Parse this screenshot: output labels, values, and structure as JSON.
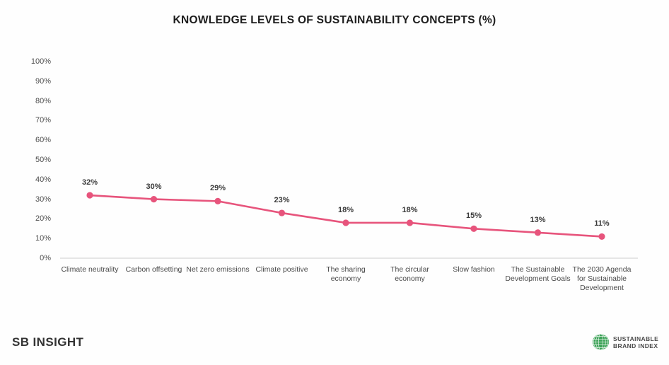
{
  "title": "KNOWLEDGE LEVELS OF SUSTAINABILITY CONCEPTS (%)",
  "colors": {
    "line": "#e7547c",
    "marker": "#e7547c",
    "baseline": "#dedede",
    "label": "#3a3a3a",
    "logo_green": "#3ca257"
  },
  "footer": {
    "brand": "SB INSIGHT",
    "logo_line1": "SUSTAINABLE",
    "logo_line2": "BRAND INDEX"
  },
  "chart_data": {
    "type": "line",
    "title": "KNOWLEDGE LEVELS OF SUSTAINABILITY CONCEPTS (%)",
    "categories": [
      "Climate neutrality",
      "Carbon offsetting",
      "Net zero emissions",
      "Climate positive",
      "The sharing economy",
      "The circular economy",
      "Slow fashion",
      "The Sustainable Development Goals",
      "The 2030 Agenda for Sustainable Development"
    ],
    "values": [
      32,
      30,
      29,
      23,
      18,
      18,
      15,
      13,
      11
    ],
    "data_labels": [
      "32%",
      "30%",
      "29%",
      "23%",
      "18%",
      "18%",
      "15%",
      "13%",
      "11%"
    ],
    "xlabel": "",
    "ylabel": "",
    "ylim": [
      0,
      100
    ],
    "y_tick_step": 10,
    "y_tick_suffix": "%",
    "grid": false,
    "legend": false,
    "series_color": "#e7547c"
  }
}
